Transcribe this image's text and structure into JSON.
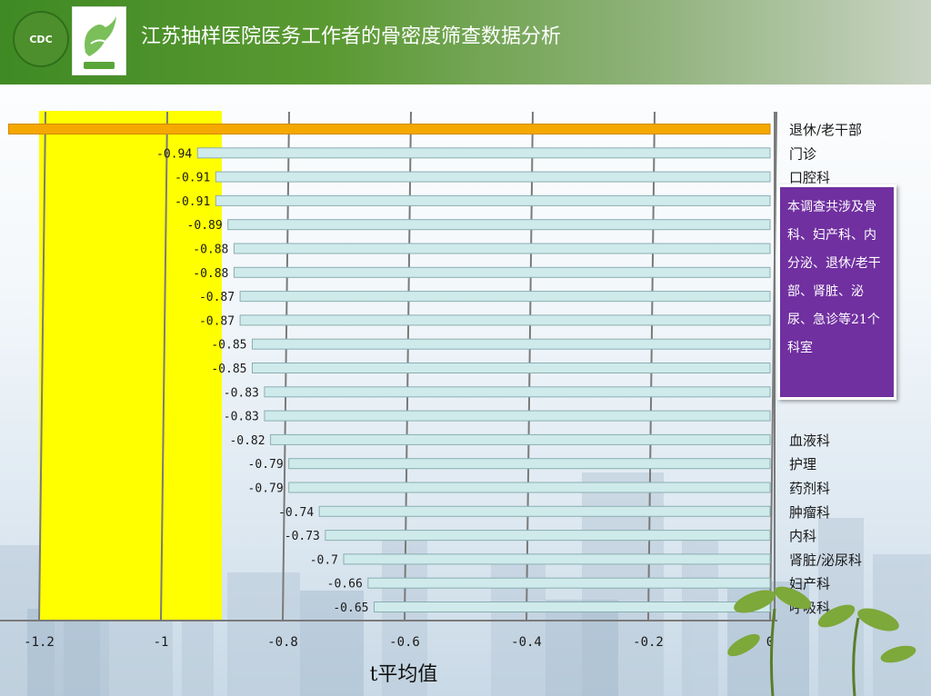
{
  "header": {
    "title": "江苏抽样医院医务工作者的骨密度筛查数据分析",
    "logo_left_text": "CDC"
  },
  "callout": {
    "text": "本调查共涉及骨科、妇产科、内分泌、退休/老干部、肾脏、泌尿、急诊等21个科室"
  },
  "chart_data": {
    "type": "bar",
    "orientation": "horizontal",
    "xlabel": "t平均值",
    "ylabel": "",
    "xlim": [
      -1.2,
      0
    ],
    "xticks": [
      -1.2,
      -1,
      -0.8,
      -0.6,
      -0.4,
      -0.2,
      0
    ],
    "xtick_labels": [
      "-1.2",
      "-1",
      "-0.8",
      "-0.6",
      "-0.4",
      "-0.2",
      "0"
    ],
    "highlight_band": {
      "from": -1.2,
      "to": -0.9,
      "color": "#ffff00"
    },
    "bar_color": "#cfeaea",
    "highlight_bar_color": "#f5a800",
    "categories": [
      "退休/老干部",
      "门诊",
      "口腔科",
      "",
      "",
      "",
      "",
      "",
      "",
      "",
      "",
      "",
      "",
      "血液科",
      "护理",
      "药剂科",
      "肿瘤科",
      "内科",
      "肾脏/泌尿科",
      "妇产科",
      "呼吸科"
    ],
    "values": [
      -1.25,
      -0.94,
      -0.91,
      -0.91,
      -0.89,
      -0.88,
      -0.88,
      -0.87,
      -0.87,
      -0.85,
      -0.85,
      -0.83,
      -0.83,
      -0.82,
      -0.79,
      -0.79,
      -0.74,
      -0.73,
      -0.7,
      -0.66,
      -0.65
    ],
    "value_labels": [
      "",
      "-0.94",
      "-0.91",
      "-0.91",
      "-0.89",
      "-0.88",
      "-0.88",
      "-0.87",
      "-0.87",
      "-0.85",
      "-0.85",
      "-0.83",
      "-0.83",
      "-0.82",
      "-0.79",
      "-0.79",
      "-0.74",
      "-0.73",
      "-0.7",
      "-0.66",
      "-0.65"
    ],
    "highlight_index": 0
  }
}
